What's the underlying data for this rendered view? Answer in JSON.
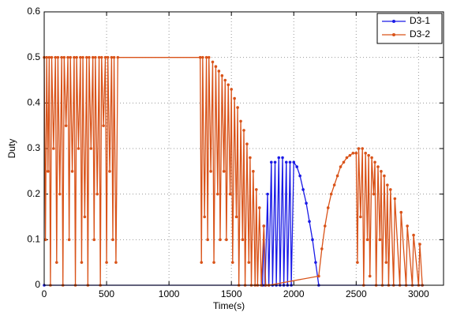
{
  "chart_data": {
    "type": "line",
    "xlabel": "Time(s)",
    "ylabel": "Duty",
    "xlim": [
      0,
      3200
    ],
    "xticks": [
      0,
      500,
      1000,
      1500,
      2000,
      2500,
      3000
    ],
    "ylim": [
      0,
      0.6
    ],
    "yticks": [
      0,
      0.1,
      0.2,
      0.3,
      0.4,
      0.5,
      0.6
    ],
    "grid": true,
    "legend": "upper right",
    "series": [
      {
        "name": "D3-1",
        "color": "#1a1ae6",
        "x": [
          0,
          1750,
          1760,
          1770,
          1790,
          1800,
          1820,
          1830,
          1850,
          1860,
          1880,
          1890,
          1910,
          1920,
          1940,
          1950,
          1970,
          1980,
          2000,
          2025,
          2050,
          2075,
          2100,
          2125,
          2150,
          2175,
          2200,
          3030
        ],
        "values": [
          0,
          0,
          0.13,
          0,
          0.2,
          0,
          0.27,
          0,
          0.27,
          0,
          0.28,
          0,
          0.28,
          0,
          0.27,
          0,
          0.27,
          0,
          0.27,
          0.26,
          0.24,
          0.21,
          0.18,
          0.14,
          0.1,
          0.05,
          0,
          0
        ]
      },
      {
        "name": "D3-2",
        "color": "#d95319",
        "x": [
          0,
          10,
          20,
          30,
          40,
          50,
          60,
          75,
          90,
          100,
          110,
          125,
          140,
          150,
          160,
          175,
          190,
          200,
          210,
          225,
          240,
          250,
          260,
          275,
          290,
          300,
          310,
          325,
          340,
          350,
          360,
          375,
          390,
          400,
          410,
          425,
          440,
          450,
          460,
          475,
          490,
          500,
          510,
          525,
          540,
          550,
          560,
          575,
          590,
          1250,
          1260,
          1270,
          1285,
          1300,
          1310,
          1320,
          1335,
          1350,
          1360,
          1375,
          1390,
          1400,
          1410,
          1425,
          1440,
          1450,
          1460,
          1475,
          1490,
          1500,
          1510,
          1525,
          1540,
          1550,
          1560,
          1575,
          1590,
          1600,
          1610,
          1625,
          1640,
          1650,
          1660,
          1675,
          1690,
          1700,
          1710,
          1725,
          1740,
          1760,
          1775,
          1800,
          2200,
          2225,
          2250,
          2275,
          2300,
          2325,
          2350,
          2375,
          2400,
          2425,
          2450,
          2475,
          2500,
          2510,
          2520,
          2535,
          2550,
          2560,
          2575,
          2590,
          2600,
          2610,
          2625,
          2640,
          2650,
          2660,
          2675,
          2690,
          2700,
          2710,
          2725,
          2740,
          2750,
          2760,
          2775,
          2800,
          2810,
          2850,
          2860,
          2900,
          2910,
          2950,
          2960,
          3000,
          3010,
          3030
        ],
        "values": [
          0.5,
          0.1,
          0.5,
          0.25,
          0.5,
          0,
          0.5,
          0.3,
          0.5,
          0.05,
          0.5,
          0.2,
          0.5,
          0,
          0.5,
          0.35,
          0.5,
          0.1,
          0.5,
          0.25,
          0.5,
          0,
          0.5,
          0.3,
          0.5,
          0.05,
          0.5,
          0.15,
          0.5,
          0,
          0.5,
          0.3,
          0.5,
          0.1,
          0.5,
          0.2,
          0.5,
          0,
          0.5,
          0.35,
          0.5,
          0.05,
          0.5,
          0.25,
          0.5,
          0.1,
          0.5,
          0.05,
          0.5,
          0.5,
          0.05,
          0.5,
          0.15,
          0.5,
          0.1,
          0.5,
          0.25,
          0.49,
          0.05,
          0.48,
          0.2,
          0.47,
          0.1,
          0.46,
          0.25,
          0.45,
          0.1,
          0.44,
          0.2,
          0.43,
          0.05,
          0.41,
          0.15,
          0.39,
          0,
          0.36,
          0.1,
          0.34,
          0,
          0.31,
          0.05,
          0.28,
          0,
          0.25,
          0,
          0.21,
          0,
          0.17,
          0,
          0.13,
          0,
          0,
          0.02,
          0.08,
          0.13,
          0.17,
          0.2,
          0.22,
          0.24,
          0.26,
          0.27,
          0.28,
          0.285,
          0.29,
          0.29,
          0.05,
          0.3,
          0.15,
          0.3,
          0,
          0.29,
          0.1,
          0.285,
          0.02,
          0.28,
          0.2,
          0.27,
          0,
          0.26,
          0.1,
          0.25,
          0,
          0.24,
          0.05,
          0.22,
          0,
          0.21,
          0,
          0.19,
          0,
          0.16,
          0,
          0.13,
          0,
          0.11,
          0,
          0.09,
          0
        ]
      }
    ]
  }
}
